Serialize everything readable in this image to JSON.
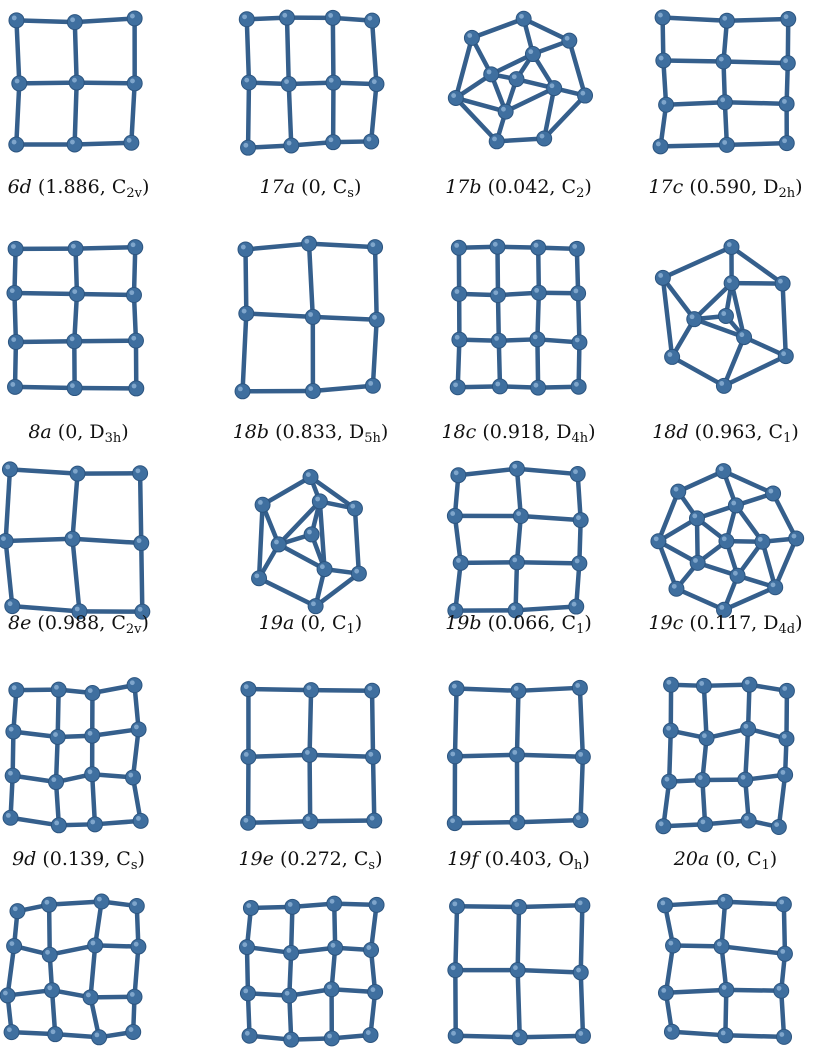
{
  "atom_color": "#3f6f9f",
  "bond_color": "#355f8c",
  "rows": [
    [
      {
        "label": "6d",
        "energy": "1.886",
        "sym": "C",
        "sub": "2v"
      },
      {
        "label": "17a",
        "energy": "0",
        "sym": "C",
        "sub": "s"
      },
      {
        "label": "17b",
        "energy": "0.042",
        "sym": "C",
        "sub": "2"
      },
      {
        "label": "17c",
        "energy": "0.590",
        "sym": "D",
        "sub": "2h"
      }
    ],
    [
      {
        "label": "8a",
        "energy": "0",
        "sym": "D",
        "sub": "3h"
      },
      {
        "label": "18b",
        "energy": "0.833",
        "sym": "D",
        "sub": "5h"
      },
      {
        "label": "18c",
        "energy": "0.918",
        "sym": "D",
        "sub": "4h"
      },
      {
        "label": "18d",
        "energy": "0.963",
        "sym": "C",
        "sub": "1"
      }
    ],
    [
      {
        "label": "8e",
        "energy": "0.988",
        "sym": "C",
        "sub": "2v"
      },
      {
        "label": "19a",
        "energy": "0",
        "sym": "C",
        "sub": "1"
      },
      {
        "label": "19b",
        "energy": "0.066",
        "sym": "C",
        "sub": "1"
      },
      {
        "label": "19c",
        "energy": "0.117",
        "sym": "D",
        "sub": "4d"
      }
    ],
    [
      {
        "label": "9d",
        "energy": "0.139",
        "sym": "C",
        "sub": "s"
      },
      {
        "label": "19e",
        "energy": "0.272",
        "sym": "C",
        "sub": "s"
      },
      {
        "label": "19f",
        "energy": "0.403",
        "sym": "O",
        "sub": "h"
      },
      {
        "label": "20a",
        "energy": "0",
        "sym": "C",
        "sub": "1"
      }
    ],
    [
      {
        "label": "",
        "energy": "",
        "sym": "",
        "sub": ""
      },
      {
        "label": "",
        "energy": "",
        "sym": "",
        "sub": ""
      },
      {
        "label": "",
        "energy": "",
        "sym": "",
        "sub": ""
      },
      {
        "label": "",
        "energy": "",
        "sym": "",
        "sub": ""
      }
    ]
  ]
}
